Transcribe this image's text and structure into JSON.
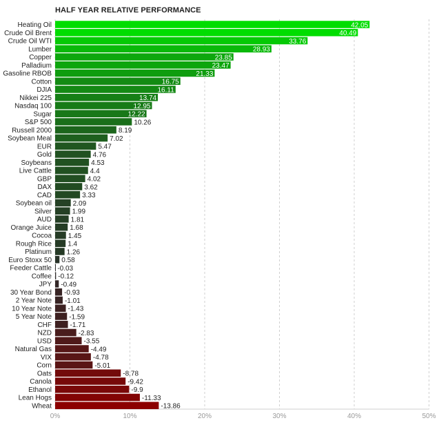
{
  "chart_data": {
    "type": "bar",
    "orientation": "horizontal",
    "title": "HALF YEAR RELATIVE PERFORMANCE",
    "xlim": [
      0,
      50
    ],
    "x_ticks": [
      "0%",
      "10%",
      "20%",
      "30%",
      "40%",
      "50%"
    ],
    "grid": true,
    "categories": [
      "Heating Oil",
      "Crude Oil Brent",
      "Crude Oil WTI",
      "Lumber",
      "Copper",
      "Palladium",
      "Gasoline RBOB",
      "Cotton",
      "DJIA",
      "Nikkei 225",
      "Nasdaq 100",
      "Sugar",
      "S&P 500",
      "Russell 2000",
      "Soybean Meal",
      "EUR",
      "Gold",
      "Soybeans",
      "Live Cattle",
      "GBP",
      "DAX",
      "CAD",
      "Soybean oil",
      "Silver",
      "AUD",
      "Orange Juice",
      "Cocoa",
      "Rough Rice",
      "Platinum",
      "Euro Stoxx 50",
      "Feeder Cattle",
      "Coffee",
      "JPY",
      "30 Year Bond",
      "2 Year Note",
      "10 Year Note",
      "5 Year Note",
      "CHF",
      "NZD",
      "USD",
      "Natural Gas",
      "VIX",
      "Corn",
      "Oats",
      "Canola",
      "Ethanol",
      "Lean Hogs",
      "Wheat"
    ],
    "values": [
      42.05,
      40.49,
      33.76,
      28.93,
      23.85,
      23.47,
      21.33,
      16.75,
      16.11,
      13.74,
      12.95,
      12.22,
      10.26,
      8.19,
      7.02,
      5.47,
      4.76,
      4.53,
      4.4,
      4.02,
      3.62,
      3.33,
      2.09,
      1.99,
      1.81,
      1.68,
      1.45,
      1.4,
      1.26,
      0.58,
      -0.03,
      -0.12,
      -0.49,
      -0.93,
      -1.01,
      -1.43,
      -1.59,
      -1.71,
      -2.83,
      -3.55,
      -4.49,
      -4.78,
      -5.01,
      -8.78,
      -9.42,
      -9.9,
      -11.33,
      -13.86
    ],
    "value_labels": [
      "42.05",
      "40.49",
      "33.76",
      "28.93",
      "23.85",
      "23.47",
      "21.33",
      "16.75",
      "16.11",
      "13.74",
      "12.95",
      "12.22",
      "10.26",
      "8.19",
      "7.02",
      "5.47",
      "4.76",
      "4.53",
      "4.4",
      "4.02",
      "3.62",
      "3.33",
      "2.09",
      "1.99",
      "1.81",
      "1.68",
      "1.45",
      "1.4",
      "1.26",
      "0.58",
      "-0.03",
      "-0.12",
      "-0.49",
      "-0.93",
      "-1.01",
      "-1.43",
      "-1.59",
      "-1.71",
      "-2.83",
      "-3.55",
      "-4.49",
      "-4.78",
      "-5.01",
      "-8.78",
      "-9.42",
      "-9.9",
      "-11.33",
      "-13.86"
    ],
    "colors": {
      "strong_positive": "#00dd00",
      "neutral": "#2a2a2a",
      "strong_negative": "#8c0000",
      "grid": "#cfcfcf",
      "axis_text": "#999999",
      "label_text": "#222222"
    }
  }
}
